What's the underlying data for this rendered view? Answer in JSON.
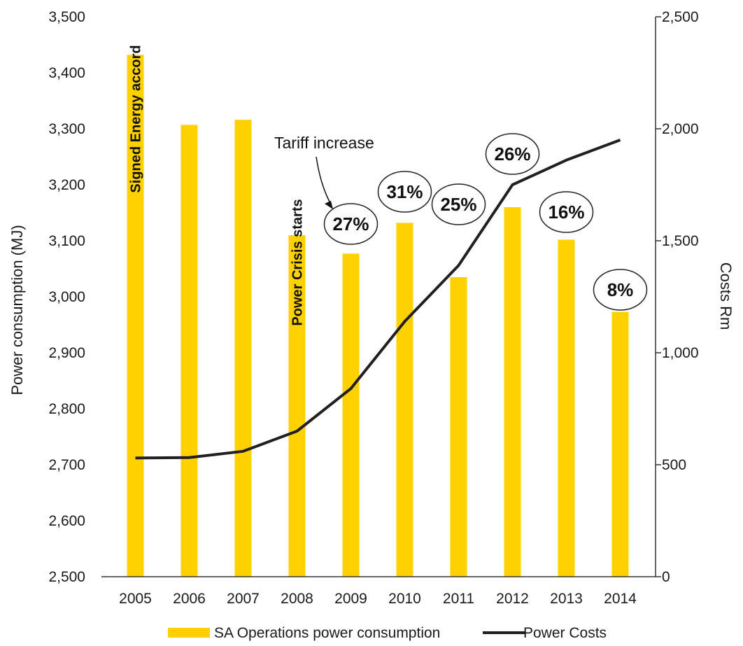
{
  "chart_data": {
    "type": "bar",
    "categories": [
      "2005",
      "2006",
      "2007",
      "2008",
      "2009",
      "2010",
      "2011",
      "2012",
      "2013",
      "2014"
    ],
    "series": [
      {
        "name": "SA Operations power consumption",
        "type": "bar",
        "axis": "left",
        "color": "#FFD100",
        "values": [
          3432,
          3307,
          3316,
          3110,
          3077,
          3132,
          3035,
          3160,
          3102,
          2973
        ]
      },
      {
        "name": "Power Costs",
        "type": "line",
        "axis": "right",
        "color": "#231f20",
        "values": [
          530,
          532,
          560,
          650,
          840,
          1140,
          1390,
          1750,
          1860,
          1950
        ]
      }
    ],
    "ylabel": "Power consumption (MJ)",
    "ylim": [
      2500,
      3500
    ],
    "yticks": [
      "2,500",
      "2,600",
      "2,700",
      "2,800",
      "2,900",
      "3,000",
      "3,100",
      "3,200",
      "3,300",
      "3,400",
      "3,500"
    ],
    "y2label": "Costs Rm",
    "y2lim": [
      0,
      2500
    ],
    "y2ticks": [
      "0",
      "500",
      "1,000",
      "1,500",
      "2,000",
      "2,500"
    ],
    "legend_position": "bottom",
    "grid": false,
    "annotations": {
      "tariff_label": "Tariff increase",
      "tariff_increases": [
        {
          "category": "2009",
          "text": "27%"
        },
        {
          "category": "2010",
          "text": "31%"
        },
        {
          "category": "2011",
          "text": "25%"
        },
        {
          "category": "2012",
          "text": "26%"
        },
        {
          "category": "2013",
          "text": "16%"
        },
        {
          "category": "2014",
          "text": "8%"
        }
      ],
      "events": [
        {
          "category": "2005",
          "text": "Signed Energy accord"
        },
        {
          "category": "2008",
          "text": "Power Crisis  starts"
        }
      ]
    }
  }
}
